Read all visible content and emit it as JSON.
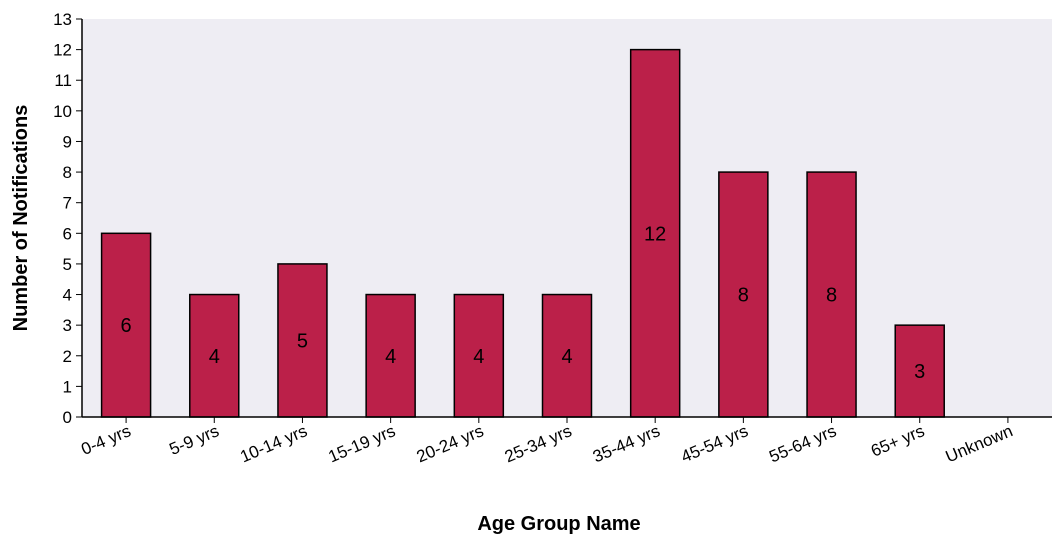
{
  "chart_data": {
    "type": "bar",
    "title": "",
    "xlabel": "Age Group Name",
    "ylabel": "Number of Notifications",
    "categories": [
      "0-4 yrs",
      "5-9 yrs",
      "10-14 yrs",
      "15-19 yrs",
      "20-24 yrs",
      "25-34 yrs",
      "35-44 yrs",
      "45-54 yrs",
      "55-64 yrs",
      "65+ yrs",
      "Unknown"
    ],
    "values": [
      6,
      4,
      5,
      4,
      4,
      4,
      12,
      8,
      8,
      3,
      0
    ],
    "ylim": [
      0,
      13
    ],
    "yticks": [
      "0",
      "1",
      "2",
      "3",
      "4",
      "5",
      "6",
      "7",
      "8",
      "9",
      "10",
      "11",
      "12",
      "13"
    ],
    "grid": false,
    "legend": "none",
    "colors": {
      "bar": "#BB2049",
      "bar_outline": "#000000",
      "plot_background": "#EEEDF3"
    }
  }
}
